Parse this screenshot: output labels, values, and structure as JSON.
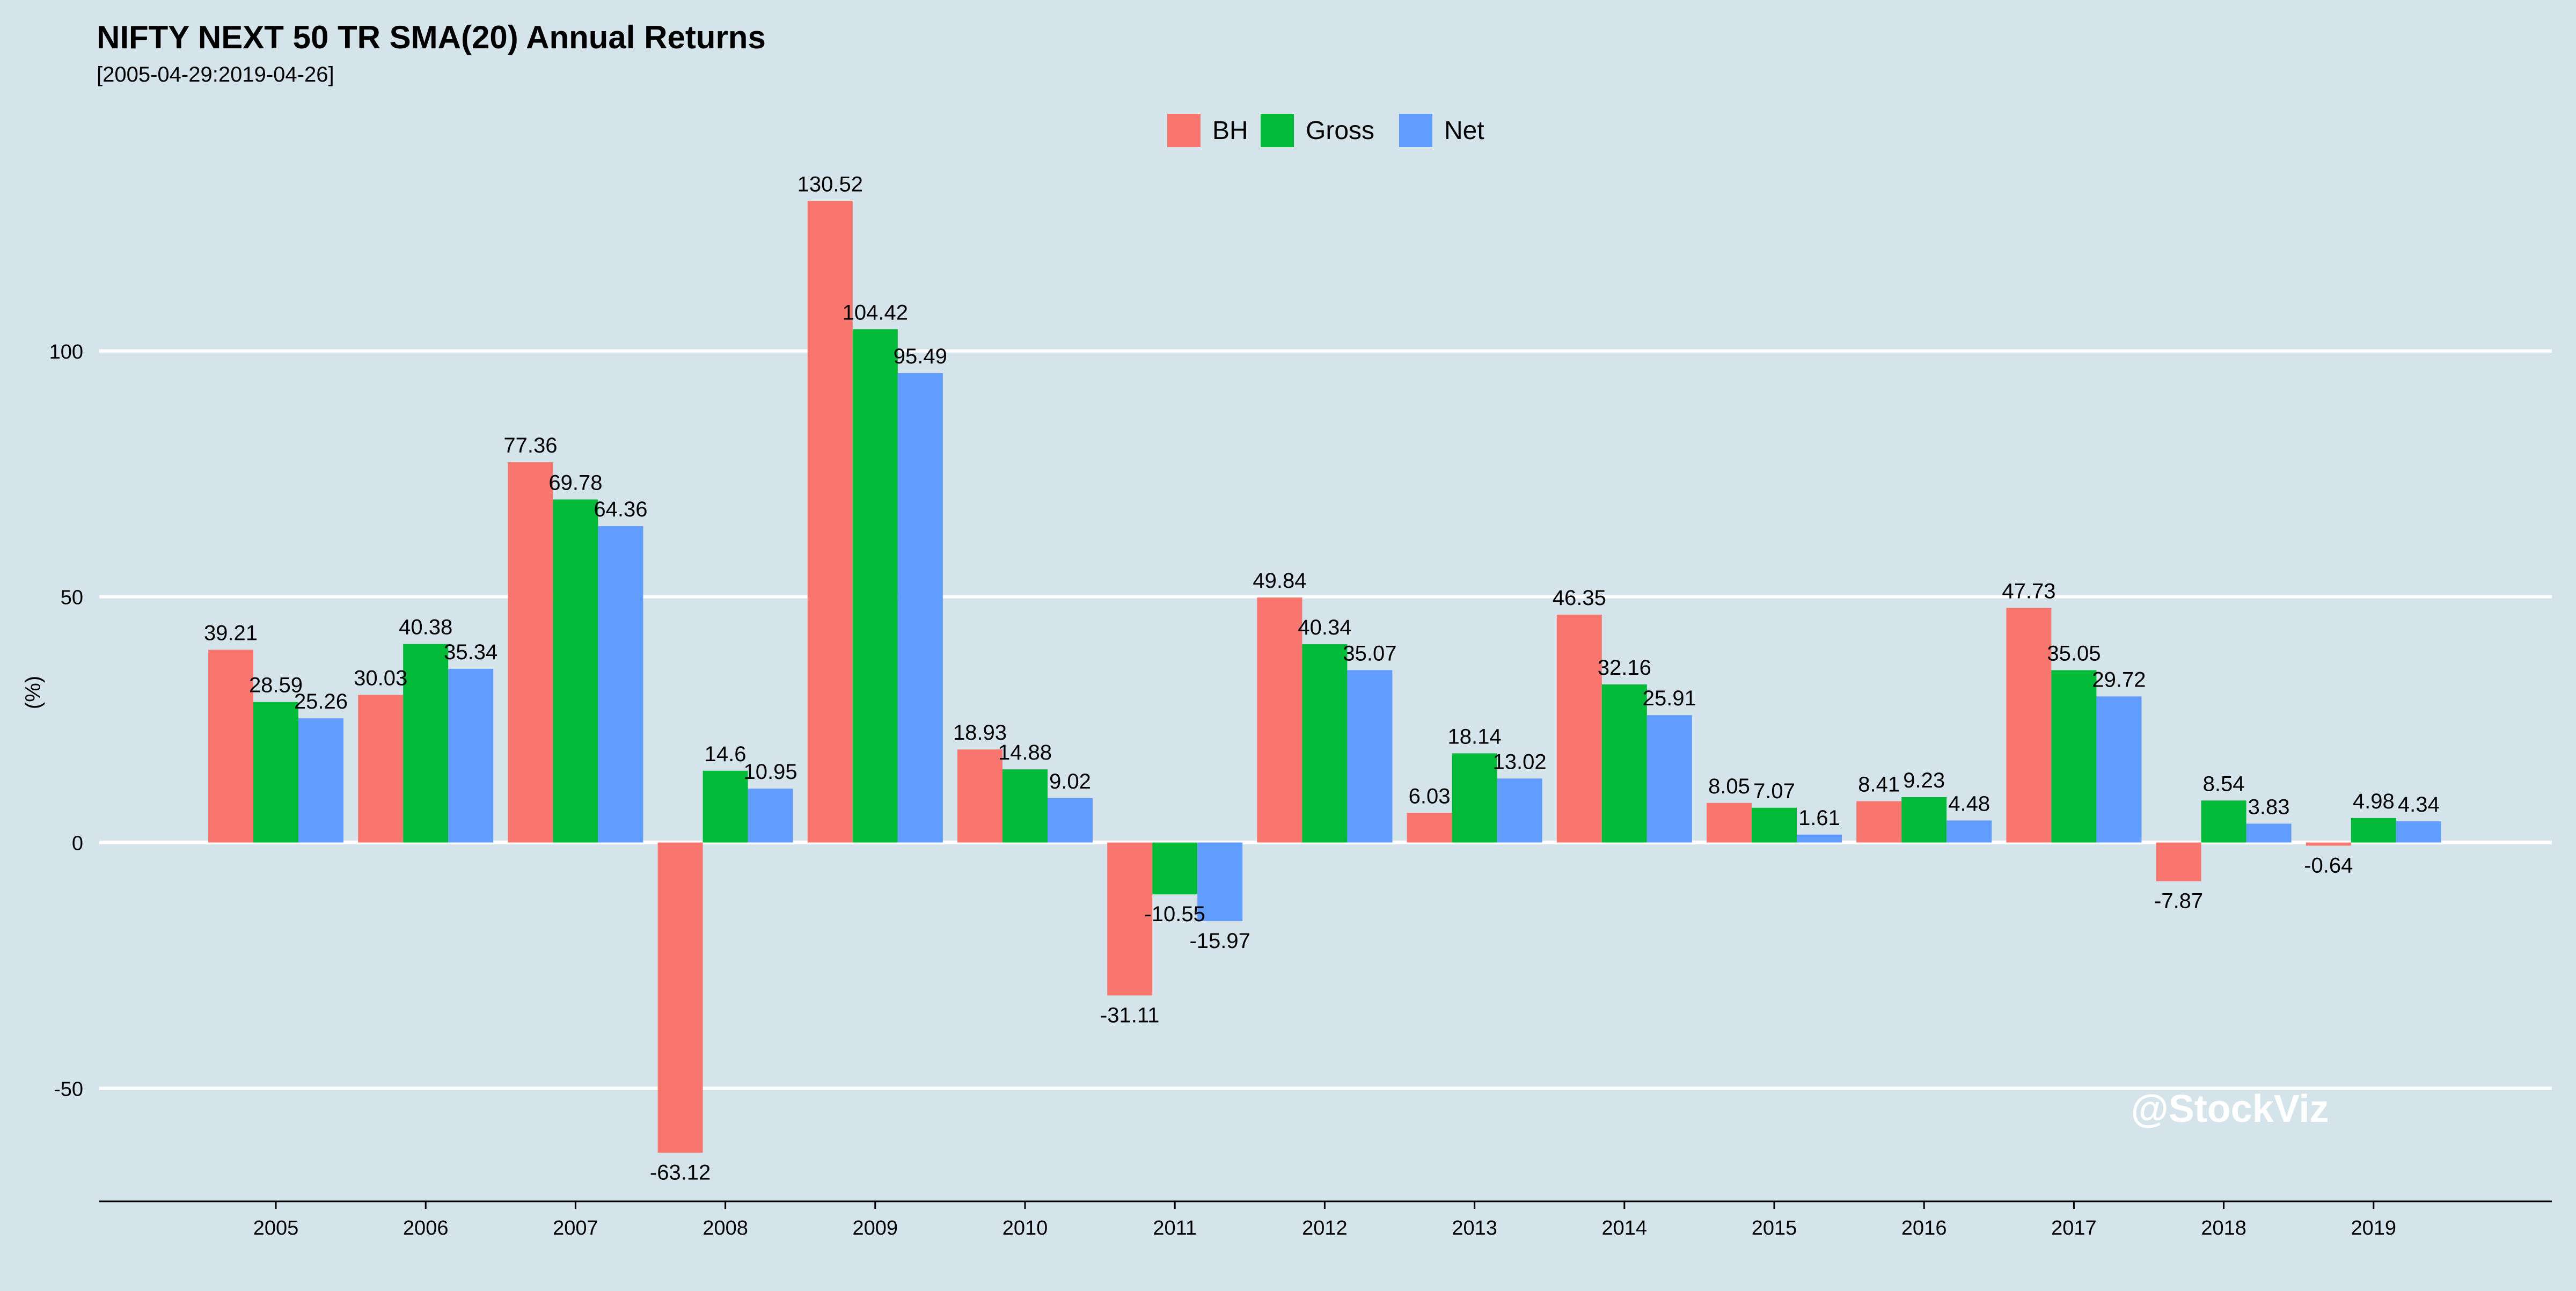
{
  "chart_data": {
    "type": "bar",
    "title": "NIFTY NEXT 50 TR SMA(20) Annual Returns",
    "subtitle": "[2005-04-29:2019-04-26]",
    "ylabel": "(%)",
    "xlabel": "",
    "ylim": [
      -73,
      143
    ],
    "yticks": [
      -50,
      0,
      50,
      100
    ],
    "grid": "horizontal",
    "legend_position": "top-center",
    "categories": [
      "2005",
      "2006",
      "2007",
      "2008",
      "2009",
      "2010",
      "2011",
      "2012",
      "2013",
      "2014",
      "2015",
      "2016",
      "2017",
      "2018",
      "2019"
    ],
    "series": [
      {
        "name": "BH",
        "color": "#f8766d",
        "values": [
          39.21,
          30.03,
          77.36,
          -63.12,
          130.52,
          18.93,
          -31.11,
          49.84,
          6.03,
          46.35,
          8.05,
          8.41,
          47.73,
          -7.87,
          -0.64
        ]
      },
      {
        "name": "Gross",
        "color": "#00ba38",
        "values": [
          28.59,
          40.38,
          69.78,
          14.6,
          104.42,
          14.88,
          -10.55,
          40.34,
          18.14,
          32.16,
          7.07,
          9.23,
          35.05,
          8.54,
          4.98
        ]
      },
      {
        "name": "Net",
        "color": "#619cff",
        "values": [
          25.26,
          35.34,
          64.36,
          10.95,
          95.49,
          9.02,
          -15.97,
          35.07,
          13.02,
          25.91,
          1.61,
          4.48,
          29.72,
          3.83,
          4.34
        ]
      }
    ],
    "watermark": "@StockViz"
  }
}
